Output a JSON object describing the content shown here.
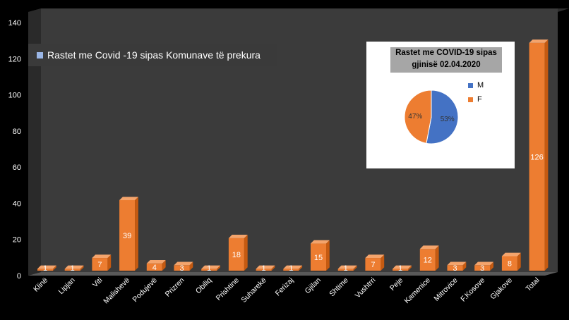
{
  "chart_data": [
    {
      "type": "bar",
      "title": "Rastet me Covid -19 sipas Komunave të prekura",
      "categories": [
        "Klinë",
        "Lipjan",
        "Viti",
        "Malishevë",
        "Podujevë",
        "Prizren",
        "Obiliq",
        "Prishtine",
        "Suharekë",
        "Ferizaj",
        "Gjilan",
        "Shtime",
        "Vushtrri",
        "Peje",
        "Kamenice",
        "Mitrovice",
        "F.Kosove",
        "Gjakove",
        "Total"
      ],
      "values": [
        1,
        1,
        7,
        39,
        4,
        3,
        1,
        18,
        1,
        1,
        15,
        1,
        7,
        1,
        12,
        3,
        3,
        8,
        126
      ],
      "data_labels": [
        "1",
        "1",
        "7",
        "39",
        "4",
        "3",
        "1",
        "18",
        "1",
        "1",
        "15",
        "1",
        "7",
        "1",
        "12",
        "3",
        "3",
        "8",
        "126"
      ],
      "ylim": [
        0,
        140
      ],
      "yticks": [
        "0",
        "20",
        "40",
        "60",
        "80",
        "100",
        "120",
        "140"
      ],
      "grid": false,
      "legend": "top-left",
      "bar_color": "#ed7d31",
      "legend_color": "#9ab6e6"
    },
    {
      "type": "pie",
      "title_line1": "Rastet me COVID-19  sipas",
      "title_line2": "gjinisë 02.04.2020",
      "labels": [
        "M",
        "F"
      ],
      "values": [
        53,
        47
      ],
      "value_labels": [
        "53%",
        "47%"
      ],
      "colors": [
        "#4472c4",
        "#ed7d31"
      ],
      "legend": "right"
    }
  ]
}
